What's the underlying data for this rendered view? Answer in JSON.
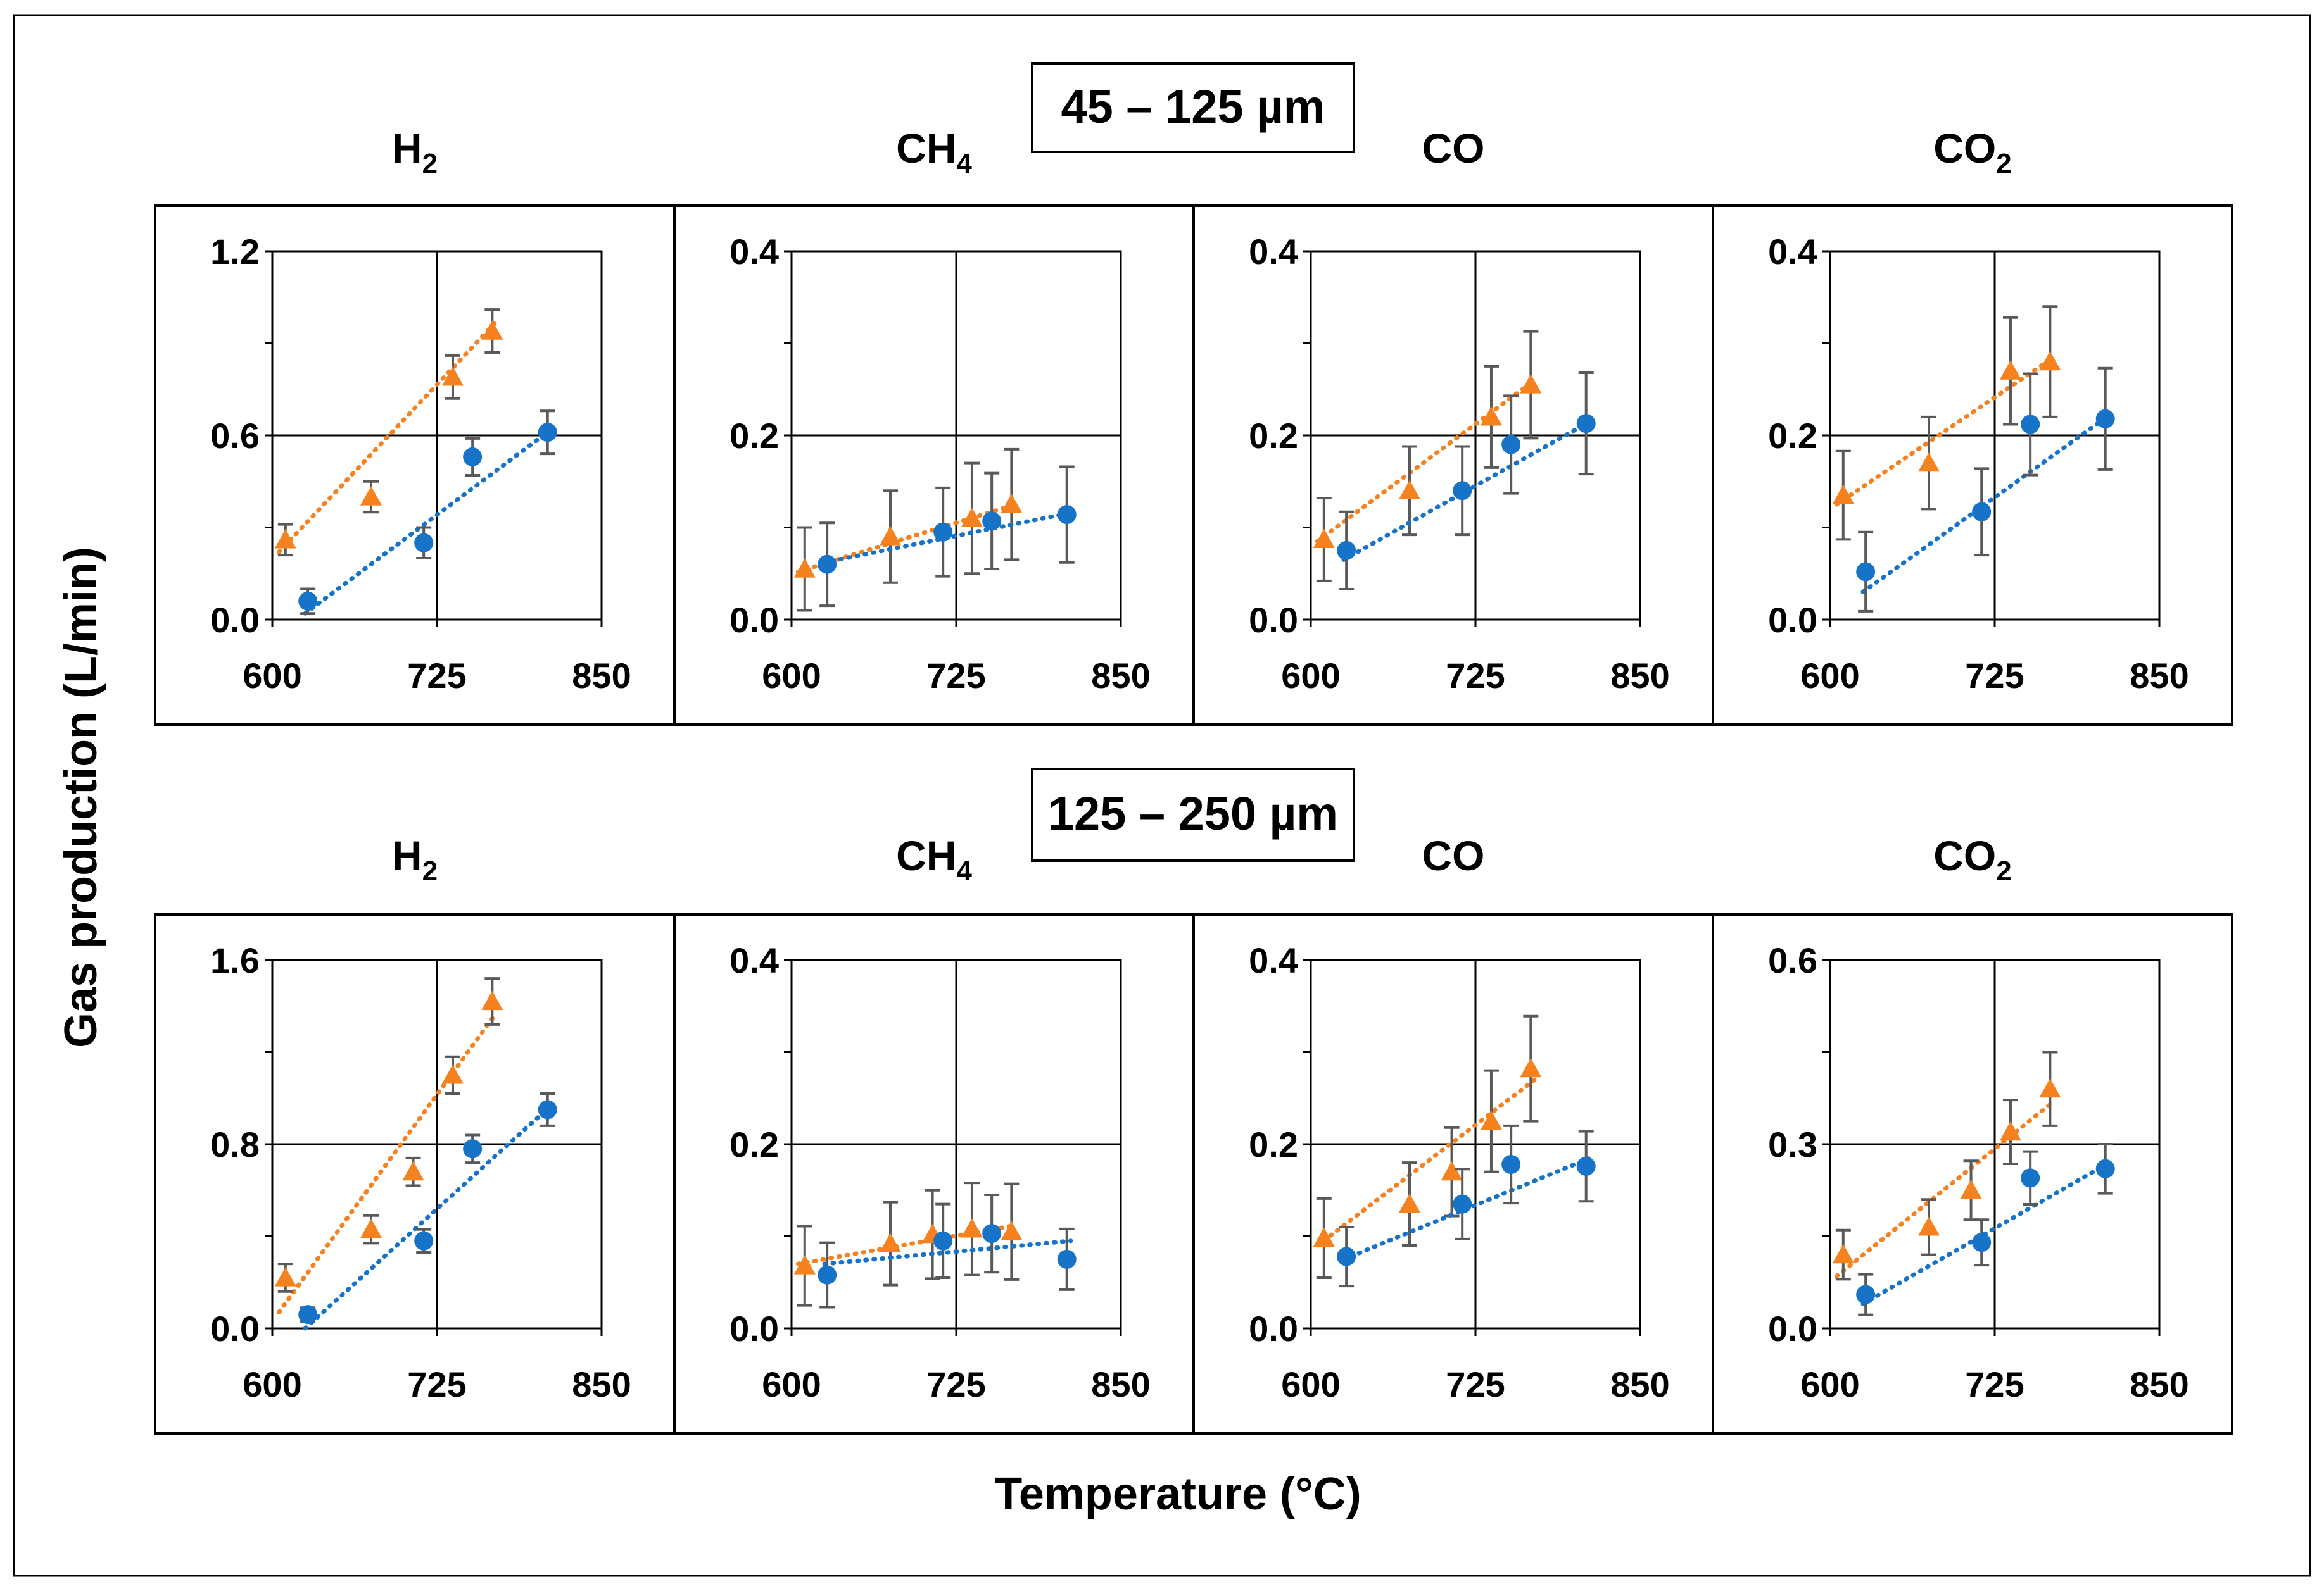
{
  "figure": {
    "ylabel": "Gas production (L/min)",
    "xlabel": "Temperature (°C)",
    "series_colors": {
      "orange": "#F5811F",
      "blue": "#1673C8",
      "errorbar": "#595959"
    }
  },
  "chart_data": [
    {
      "row": 0,
      "col": 0,
      "type": "scatter",
      "group": "45 – 125 µm",
      "title": "H",
      "subscript": "2",
      "xlim": [
        600,
        850
      ],
      "xticks": [
        "600",
        "725",
        "850"
      ],
      "ylim": [
        0,
        1.2
      ],
      "yticks": [
        "0.0",
        "0.6",
        "1.2"
      ],
      "series": [
        {
          "name": "orange-triangles",
          "marker": "triangle",
          "color": "#F5811F",
          "x": [
            610,
            675,
            737,
            767
          ],
          "y": [
            0.26,
            0.4,
            0.79,
            0.94
          ],
          "err": [
            0.05,
            0.05,
            0.07,
            0.07
          ],
          "trend": {
            "x": [
              605,
              770
            ],
            "y": [
              0.22,
              0.97
            ]
          }
        },
        {
          "name": "blue-circles",
          "marker": "circle",
          "color": "#1673C8",
          "x": [
            627,
            715,
            752,
            809
          ],
          "y": [
            0.06,
            0.25,
            0.53,
            0.61
          ],
          "err": [
            0.04,
            0.05,
            0.06,
            0.07
          ],
          "trend": {
            "x": [
              625,
              812
            ],
            "y": [
              0.02,
              0.62
            ]
          }
        }
      ]
    },
    {
      "row": 0,
      "col": 1,
      "type": "scatter",
      "group": "45 – 125 µm",
      "title": "CH",
      "subscript": "4",
      "xlim": [
        600,
        850
      ],
      "xticks": [
        "600",
        "725",
        "850"
      ],
      "ylim": [
        0,
        0.4
      ],
      "yticks": [
        "0.0",
        "0.2",
        "0.4"
      ],
      "series": [
        {
          "name": "orange-triangles",
          "marker": "triangle",
          "color": "#F5811F",
          "x": [
            610,
            675,
            737,
            767
          ],
          "y": [
            0.055,
            0.09,
            0.11,
            0.125
          ],
          "err": [
            0.045,
            0.05,
            0.06,
            0.06
          ],
          "trend": {
            "x": [
              605,
              770
            ],
            "y": [
              0.052,
              0.125
            ]
          }
        },
        {
          "name": "blue-circles",
          "marker": "circle",
          "color": "#1673C8",
          "x": [
            627,
            715,
            752,
            809
          ],
          "y": [
            0.06,
            0.095,
            0.107,
            0.114
          ],
          "err": [
            0.045,
            0.048,
            0.052,
            0.052
          ],
          "trend": {
            "x": [
              625,
              812
            ],
            "y": [
              0.062,
              0.116
            ]
          }
        }
      ]
    },
    {
      "row": 0,
      "col": 2,
      "type": "scatter",
      "group": "45 – 125 µm",
      "title": "CO",
      "subscript": "",
      "xlim": [
        600,
        850
      ],
      "xticks": [
        "600",
        "725",
        "850"
      ],
      "ylim": [
        0,
        0.4
      ],
      "yticks": [
        "0.0",
        "0.2",
        "0.4"
      ],
      "series": [
        {
          "name": "orange-triangles",
          "marker": "triangle",
          "color": "#F5811F",
          "x": [
            610,
            675,
            737,
            767
          ],
          "y": [
            0.087,
            0.14,
            0.22,
            0.255
          ],
          "err": [
            0.045,
            0.048,
            0.055,
            0.058
          ],
          "trend": {
            "x": [
              605,
              770
            ],
            "y": [
              0.085,
              0.26
            ]
          }
        },
        {
          "name": "blue-circles",
          "marker": "circle",
          "color": "#1673C8",
          "x": [
            627,
            715,
            752,
            809
          ],
          "y": [
            0.075,
            0.14,
            0.19,
            0.213
          ],
          "err": [
            0.042,
            0.048,
            0.053,
            0.055
          ],
          "trend": {
            "x": [
              625,
              812
            ],
            "y": [
              0.065,
              0.215
            ]
          }
        }
      ]
    },
    {
      "row": 0,
      "col": 3,
      "type": "scatter",
      "group": "45 – 125 µm",
      "title": "CO",
      "subscript": "2",
      "xlim": [
        600,
        850
      ],
      "xticks": [
        "600",
        "725",
        "850"
      ],
      "ylim": [
        0,
        0.4
      ],
      "yticks": [
        "0.0",
        "0.2",
        "0.4"
      ],
      "series": [
        {
          "name": "orange-triangles",
          "marker": "triangle",
          "color": "#F5811F",
          "x": [
            610,
            675,
            737,
            767
          ],
          "y": [
            0.135,
            0.17,
            0.27,
            0.28
          ],
          "err": [
            0.048,
            0.05,
            0.058,
            0.06
          ],
          "trend": {
            "x": [
              605,
              770
            ],
            "y": [
              0.125,
              0.285
            ]
          }
        },
        {
          "name": "blue-circles",
          "marker": "circle",
          "color": "#1673C8",
          "x": [
            627,
            715,
            752,
            809
          ],
          "y": [
            0.052,
            0.117,
            0.212,
            0.218
          ],
          "err": [
            0.043,
            0.047,
            0.055,
            0.055
          ],
          "trend": {
            "x": [
              625,
              812
            ],
            "y": [
              0.03,
              0.222
            ]
          }
        }
      ]
    },
    {
      "row": 1,
      "col": 0,
      "type": "scatter",
      "group": "125 – 250 µm",
      "title": "H",
      "subscript": "2",
      "xlim": [
        600,
        850
      ],
      "xticks": [
        "600",
        "725",
        "850"
      ],
      "ylim": [
        0,
        1.6
      ],
      "yticks": [
        "0.0",
        "0.8",
        "1.6"
      ],
      "series": [
        {
          "name": "orange-triangles",
          "marker": "triangle",
          "color": "#F5811F",
          "x": [
            610,
            675,
            707,
            737,
            767
          ],
          "y": [
            0.22,
            0.43,
            0.68,
            1.1,
            1.42
          ],
          "err": [
            0.06,
            0.06,
            0.06,
            0.08,
            0.1
          ],
          "trend": {
            "x": [
              605,
              770
            ],
            "y": [
              0.07,
              1.37
            ]
          }
        },
        {
          "name": "blue-circles",
          "marker": "circle",
          "color": "#1673C8",
          "x": [
            627,
            715,
            752,
            809
          ],
          "y": [
            0.06,
            0.38,
            0.78,
            0.95
          ],
          "err": [
            0.03,
            0.05,
            0.06,
            0.07
          ],
          "trend": {
            "x": [
              625,
              812
            ],
            "y": [
              0.0,
              0.97
            ]
          }
        }
      ]
    },
    {
      "row": 1,
      "col": 1,
      "type": "scatter",
      "group": "125 – 250 µm",
      "title": "CH",
      "subscript": "4",
      "xlim": [
        600,
        850
      ],
      "xticks": [
        "600",
        "725",
        "850"
      ],
      "ylim": [
        0,
        0.4
      ],
      "yticks": [
        "0.0",
        "0.2",
        "0.4"
      ],
      "series": [
        {
          "name": "orange-triangles",
          "marker": "triangle",
          "color": "#F5811F",
          "x": [
            610,
            675,
            707,
            737,
            767
          ],
          "y": [
            0.068,
            0.092,
            0.102,
            0.108,
            0.105
          ],
          "err": [
            0.043,
            0.045,
            0.048,
            0.05,
            0.052
          ],
          "trend": {
            "x": [
              605,
              770
            ],
            "y": [
              0.07,
              0.112
            ]
          }
        },
        {
          "name": "blue-circles",
          "marker": "circle",
          "color": "#1673C8",
          "x": [
            627,
            715,
            752,
            809
          ],
          "y": [
            0.058,
            0.095,
            0.103,
            0.075
          ],
          "err": [
            0.035,
            0.04,
            0.042,
            0.033
          ],
          "trend": {
            "x": [
              625,
              812
            ],
            "y": [
              0.07,
              0.095
            ]
          }
        }
      ]
    },
    {
      "row": 1,
      "col": 2,
      "type": "scatter",
      "group": "125 – 250 µm",
      "title": "CO",
      "subscript": "",
      "xlim": [
        600,
        850
      ],
      "xticks": [
        "600",
        "725",
        "850"
      ],
      "ylim": [
        0,
        0.4
      ],
      "yticks": [
        "0.0",
        "0.2",
        "0.4"
      ],
      "series": [
        {
          "name": "orange-triangles",
          "marker": "triangle",
          "color": "#F5811F",
          "x": [
            610,
            675,
            707,
            737,
            767
          ],
          "y": [
            0.098,
            0.135,
            0.17,
            0.225,
            0.282
          ],
          "err": [
            0.043,
            0.045,
            0.048,
            0.055,
            0.057
          ],
          "trend": {
            "x": [
              605,
              770
            ],
            "y": [
              0.09,
              0.27
            ]
          }
        },
        {
          "name": "blue-circles",
          "marker": "circle",
          "color": "#1673C8",
          "x": [
            627,
            715,
            752,
            809
          ],
          "y": [
            0.078,
            0.135,
            0.178,
            0.176
          ],
          "err": [
            0.032,
            0.038,
            0.042,
            0.038
          ],
          "trend": {
            "x": [
              625,
              812
            ],
            "y": [
              0.075,
              0.185
            ]
          }
        }
      ]
    },
    {
      "row": 1,
      "col": 3,
      "type": "scatter",
      "group": "125 – 250 µm",
      "title": "CO",
      "subscript": "2",
      "xlim": [
        600,
        850
      ],
      "xticks": [
        "600",
        "725",
        "850"
      ],
      "ylim": [
        0,
        0.6
      ],
      "yticks": [
        "0.0",
        "0.3",
        "0.6"
      ],
      "series": [
        {
          "name": "orange-triangles",
          "marker": "triangle",
          "color": "#F5811F",
          "x": [
            610,
            675,
            707,
            737,
            767
          ],
          "y": [
            0.12,
            0.165,
            0.225,
            0.32,
            0.39
          ],
          "err": [
            0.04,
            0.045,
            0.048,
            0.052,
            0.06
          ],
          "trend": {
            "x": [
              605,
              770
            ],
            "y": [
              0.085,
              0.37
            ]
          }
        },
        {
          "name": "blue-circles",
          "marker": "circle",
          "color": "#1673C8",
          "x": [
            627,
            715,
            752,
            809
          ],
          "y": [
            0.055,
            0.14,
            0.245,
            0.26
          ],
          "err": [
            0.033,
            0.037,
            0.043,
            0.04
          ],
          "trend": {
            "x": [
              625,
              812
            ],
            "y": [
              0.04,
              0.27
            ]
          }
        }
      ]
    }
  ]
}
